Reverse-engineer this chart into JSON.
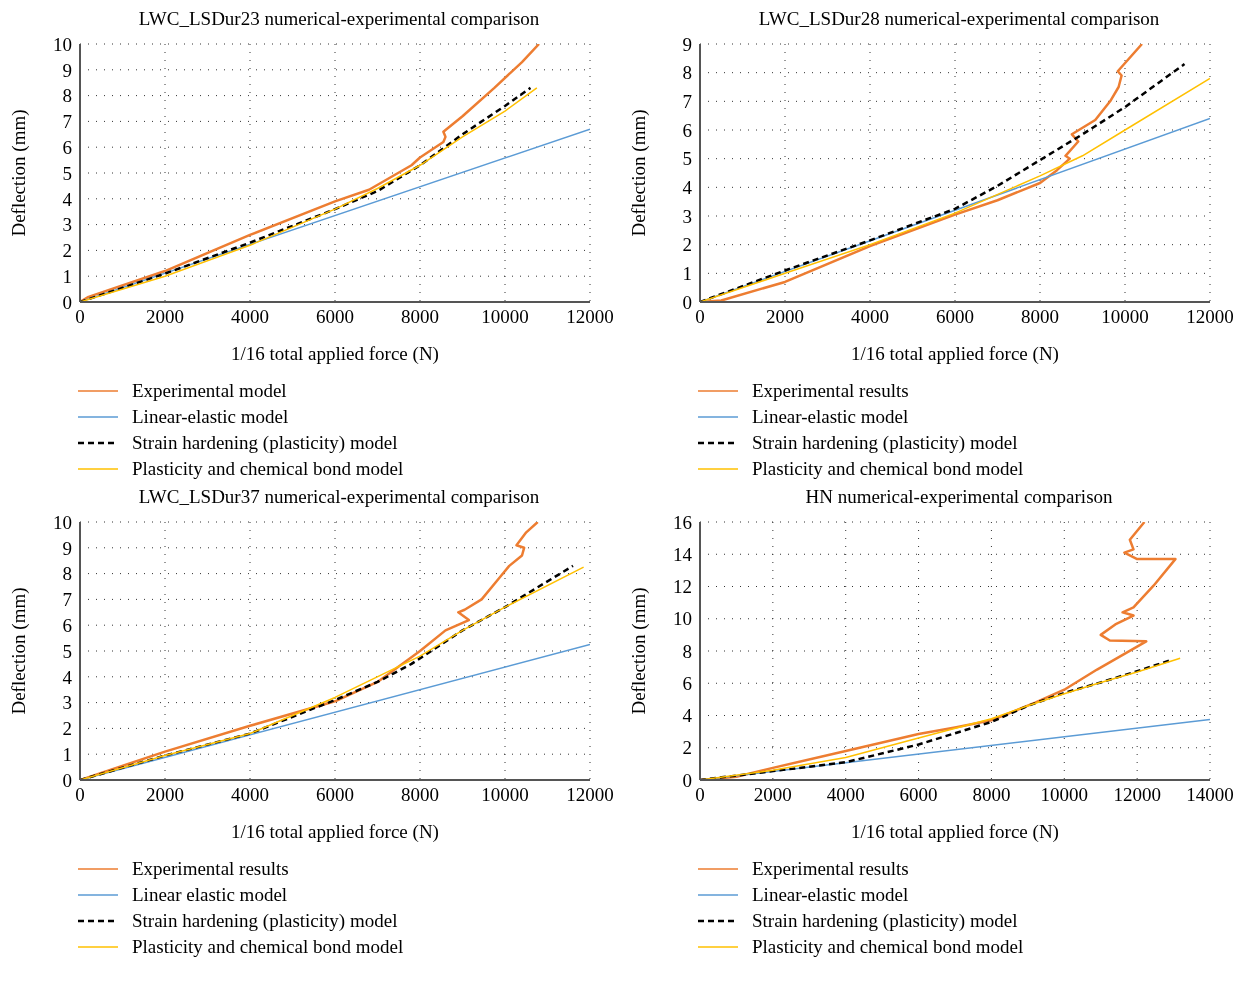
{
  "chart_data": [
    {
      "type": "line",
      "title": "LWC_LSDur23 numerical-experimental comparison",
      "xlabel": "1/16 total applied force (N)",
      "ylabel": "Deflection (mm)",
      "xlim": [
        0,
        12000
      ],
      "xticks": [
        0,
        2000,
        4000,
        6000,
        8000,
        10000,
        12000
      ],
      "ylim": [
        0,
        10
      ],
      "yticks": [
        0,
        1,
        2,
        3,
        4,
        5,
        6,
        7,
        8,
        9,
        10
      ],
      "grid": true,
      "legend": "bottom",
      "marker": "none",
      "series": [
        {
          "name": "Experimental model",
          "color": "#ed7d31",
          "x": [
            0,
            200,
            2000,
            4000,
            6000,
            6800,
            7800,
            8000,
            8550,
            8600,
            8550,
            9000,
            9750,
            10400,
            10800
          ],
          "values": [
            0,
            0.2,
            1.2,
            2.6,
            3.9,
            4.35,
            5.3,
            5.6,
            6.2,
            6.4,
            6.6,
            7.2,
            8.3,
            9.3,
            10
          ]
        },
        {
          "name": "Linear-elastic model",
          "color": "#5b9bd5",
          "x": [
            0,
            12000
          ],
          "values": [
            0,
            6.7
          ]
        },
        {
          "name": "Strain hardening (plasticity) model",
          "color": "#000000",
          "line_style": "dashed",
          "x": [
            0,
            2000,
            4000,
            6000,
            7000,
            8000,
            9000,
            10000,
            10600
          ],
          "values": [
            0,
            1.1,
            2.3,
            3.6,
            4.3,
            5.3,
            6.5,
            7.6,
            8.3
          ]
        },
        {
          "name": "Plasticity and chemical bond model",
          "color": "#ffc000",
          "x": [
            0,
            2000,
            4000,
            6000,
            7000,
            8000,
            9000,
            10000,
            10750
          ],
          "values": [
            0,
            1.0,
            2.2,
            3.6,
            4.4,
            5.3,
            6.4,
            7.4,
            8.3
          ]
        }
      ]
    },
    {
      "type": "line",
      "title": "LWC_LSDur28 numerical-experimental comparison",
      "xlabel": "1/16 total applied force (N)",
      "ylabel": "Deflection (mm)",
      "xlim": [
        0,
        12000
      ],
      "xticks": [
        0,
        2000,
        4000,
        6000,
        8000,
        10000,
        12000
      ],
      "ylim": [
        0,
        9
      ],
      "yticks": [
        0,
        1,
        2,
        3,
        4,
        5,
        6,
        7,
        8,
        9
      ],
      "grid": true,
      "legend": "bottom",
      "marker": "none",
      "series": [
        {
          "name": "Experimental results",
          "color": "#ed7d31",
          "x": [
            0,
            500,
            2000,
            4000,
            6000,
            7000,
            8000,
            8400,
            8700,
            8600,
            8900,
            8750,
            9300,
            9650,
            9850,
            9920,
            9830,
            10400
          ],
          "values": [
            0,
            0.05,
            0.7,
            1.95,
            3.05,
            3.55,
            4.15,
            4.6,
            5.0,
            5.1,
            5.6,
            5.85,
            6.35,
            7.0,
            7.5,
            7.9,
            8.05,
            9
          ]
        },
        {
          "name": "Linear-elastic model",
          "color": "#5b9bd5",
          "x": [
            0,
            12000
          ],
          "values": [
            0,
            6.4
          ]
        },
        {
          "name": "Strain hardening (plasticity) model",
          "color": "#000000",
          "line_style": "dashed",
          "x": [
            0,
            2000,
            4000,
            6000,
            7000,
            8000,
            9000,
            10000,
            11400
          ],
          "values": [
            0,
            1.1,
            2.15,
            3.25,
            4.05,
            4.95,
            5.85,
            6.8,
            8.3
          ]
        },
        {
          "name": "Plasticity and chemical bond model",
          "color": "#ffc000",
          "x": [
            0,
            2000,
            4000,
            6000,
            8000,
            9000,
            10000,
            12000
          ],
          "values": [
            0,
            1.0,
            2.0,
            3.1,
            4.4,
            5.1,
            6.0,
            7.8
          ]
        }
      ]
    },
    {
      "type": "line",
      "title": "LWC_LSDur37 numerical-experimental comparison",
      "xlabel": "1/16 total applied force (N)",
      "ylabel": "Deflection (mm)",
      "xlim": [
        0,
        12000
      ],
      "xticks": [
        0,
        2000,
        4000,
        6000,
        8000,
        10000,
        12000
      ],
      "ylim": [
        0,
        10
      ],
      "yticks": [
        0,
        1,
        2,
        3,
        4,
        5,
        6,
        7,
        8,
        9,
        10
      ],
      "grid": true,
      "legend": "bottom",
      "marker": "none",
      "series": [
        {
          "name": "Experimental results",
          "color": "#ed7d31",
          "x": [
            0,
            2000,
            4000,
            6000,
            7000,
            8000,
            8600,
            9150,
            8900,
            9050,
            9450,
            9850,
            10100,
            10400,
            10450,
            10270,
            10500,
            10770
          ],
          "values": [
            0,
            1.1,
            2.1,
            3.05,
            3.8,
            5.0,
            5.8,
            6.2,
            6.5,
            6.6,
            7.0,
            7.8,
            8.3,
            8.7,
            9.0,
            9.1,
            9.6,
            10
          ]
        },
        {
          "name": "Linear elastic model",
          "color": "#5b9bd5",
          "x": [
            0,
            12000
          ],
          "values": [
            0,
            5.25
          ]
        },
        {
          "name": "Strain hardening (plasticity) model",
          "color": "#000000",
          "line_style": "dashed",
          "x": [
            0,
            2000,
            4000,
            6000,
            7000,
            7800,
            9000,
            10000,
            11600
          ],
          "values": [
            0,
            0.95,
            1.8,
            3.1,
            3.8,
            4.5,
            5.8,
            6.7,
            8.3
          ]
        },
        {
          "name": "Plasticity and chemical bond model",
          "color": "#ffc000",
          "x": [
            0,
            2000,
            4000,
            6000,
            8000,
            9000,
            10000,
            11850
          ],
          "values": [
            0,
            0.95,
            1.8,
            3.2,
            4.8,
            5.8,
            6.7,
            8.25
          ]
        }
      ]
    },
    {
      "type": "line",
      "title": "HN numerical-experimental comparison",
      "xlabel": "1/16 total applied force (N)",
      "ylabel": "Deflection (mm)",
      "xlim": [
        0,
        14000
      ],
      "xticks": [
        0,
        2000,
        4000,
        6000,
        8000,
        10000,
        12000,
        14000
      ],
      "ylim": [
        0,
        16
      ],
      "yticks": [
        0,
        2,
        4,
        6,
        8,
        10,
        12,
        14,
        16
      ],
      "grid": true,
      "legend": "bottom",
      "marker": "none",
      "series": [
        {
          "name": "Experimental results",
          "color": "#ed7d31",
          "x": [
            0,
            1000,
            2000,
            4000,
            6000,
            7000,
            8000,
            9200,
            10000,
            10900,
            12250,
            11250,
            11000,
            11400,
            11900,
            11600,
            11900,
            12450,
            13050,
            12000,
            11650,
            11900,
            11800,
            12200
          ],
          "values": [
            0,
            0.2,
            0.75,
            1.8,
            2.85,
            3.25,
            3.7,
            4.8,
            5.6,
            6.85,
            8.6,
            8.65,
            9.0,
            9.65,
            10.2,
            10.4,
            10.7,
            12.05,
            13.7,
            13.7,
            14.1,
            14.3,
            14.9,
            16
          ]
        },
        {
          "name": "Linear-elastic model",
          "color": "#5b9bd5",
          "x": [
            0,
            14000
          ],
          "values": [
            0,
            3.75
          ]
        },
        {
          "name": "Strain hardening (plasticity) model",
          "color": "#000000",
          "line_style": "dashed",
          "x": [
            0,
            2000,
            4000,
            6000,
            8000,
            9000,
            10000,
            11000,
            12000,
            12950
          ],
          "values": [
            0,
            0.55,
            1.1,
            2.2,
            3.6,
            4.6,
            5.4,
            6.05,
            6.75,
            7.45
          ]
        },
        {
          "name": "Plasticity and chemical bond model",
          "color": "#ffc000",
          "x": [
            0,
            2000,
            4000,
            6000,
            8000,
            9000,
            10000,
            11000,
            12000,
            13180
          ],
          "values": [
            0,
            0.6,
            1.4,
            2.6,
            3.8,
            4.6,
            5.35,
            6.05,
            6.7,
            7.55
          ]
        }
      ]
    }
  ]
}
